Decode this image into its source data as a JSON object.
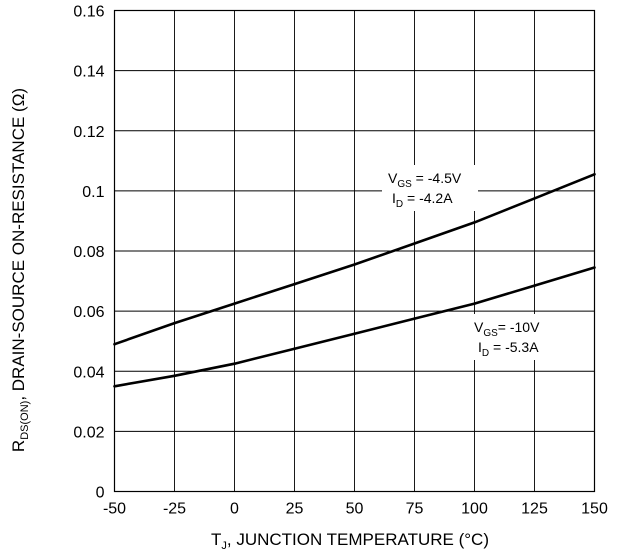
{
  "chart_data": {
    "type": "line",
    "title": "",
    "xlabel": {
      "pre": "T",
      "sub": "J",
      "post": ", JUNCTION TEMPERATURE (°C)"
    },
    "ylabel": {
      "pre": "R",
      "sub": "DS(ON)",
      "post": ", DRAIN-SOURCE ON-RESISTANCE (Ω)"
    },
    "xlim": [
      -50,
      150
    ],
    "ylim": [
      0,
      0.16
    ],
    "xticks": [
      "-50",
      "-25",
      "0",
      "25",
      "50",
      "75",
      "100",
      "125",
      "150"
    ],
    "yticks": [
      "0",
      "0.02",
      "0.04",
      "0.06",
      "0.08",
      "0.1",
      "0.12",
      "0.14",
      "0.16"
    ],
    "grid": true,
    "series": [
      {
        "x": [
          -50,
          -25,
          0,
          25,
          50,
          75,
          100,
          125,
          150
        ],
        "y": [
          0.049,
          0.056,
          0.0625,
          0.069,
          0.0755,
          0.0825,
          0.0895,
          0.0975,
          0.1055
        ]
      },
      {
        "x": [
          -50,
          -25,
          0,
          25,
          50,
          75,
          100,
          125,
          150
        ],
        "y": [
          0.035,
          0.0385,
          0.0425,
          0.0475,
          0.0525,
          0.0575,
          0.0625,
          0.0685,
          0.0745
        ]
      }
    ],
    "annotations": [
      {
        "l1_main": "V",
        "l1_sub": "GS",
        "l1_rest": " = -4.5V",
        "l2_main": "I",
        "l2_sub": "D",
        "l2_rest": " = -4.2A"
      },
      {
        "l1_main": "V",
        "l1_sub": "GS",
        "l1_rest": "= -10V",
        "l2_main": "I",
        "l2_sub": "D",
        "l2_rest": " = -5.3A"
      }
    ]
  }
}
